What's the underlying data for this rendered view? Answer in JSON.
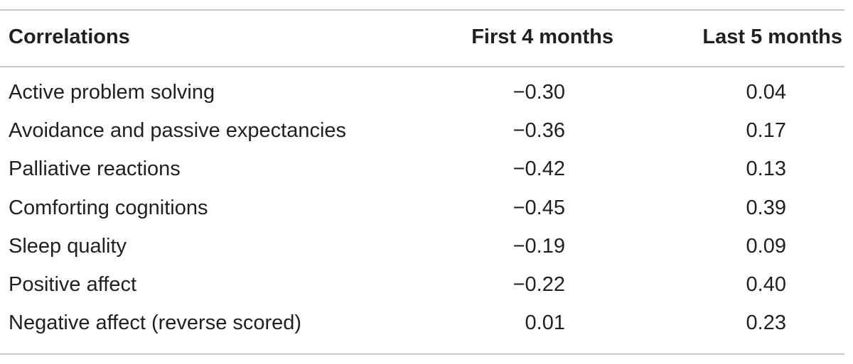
{
  "table": {
    "headers": {
      "label": "Correlations",
      "first": "First 4 months",
      "last": "Last 5 months"
    },
    "rows": [
      {
        "label": "Active problem solving",
        "first": "−0.30",
        "last": "0.04"
      },
      {
        "label": "Avoidance and passive expectancies",
        "first": "−0.36",
        "last": "0.17"
      },
      {
        "label": "Palliative reactions",
        "first": "−0.42",
        "last": "0.13"
      },
      {
        "label": "Comforting cognitions",
        "first": "−0.45",
        "last": "0.39"
      },
      {
        "label": "Sleep quality",
        "first": "−0.19",
        "last": "0.09"
      },
      {
        "label": "Positive affect",
        "first": "−0.22",
        "last": "0.40"
      },
      {
        "label": "Negative affect (reverse scored)",
        "first": "0.01",
        "last": "0.23"
      }
    ]
  }
}
